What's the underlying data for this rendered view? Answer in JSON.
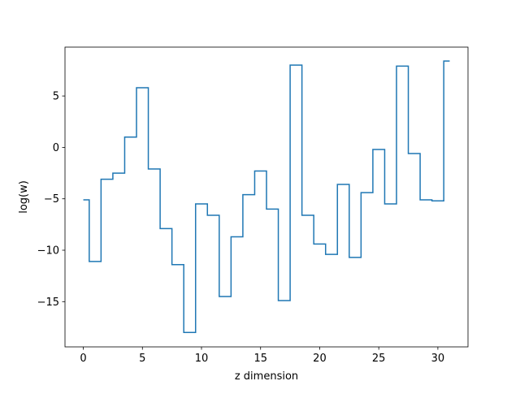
{
  "chart_data": {
    "type": "line",
    "drawstyle": "steps-mid",
    "title": "",
    "xlabel": "z dimension",
    "ylabel": "log(w)",
    "xlim": [
      -1.55,
      32.55
    ],
    "ylim": [
      -19.4,
      9.75
    ],
    "xticks": [
      0,
      5,
      10,
      15,
      20,
      25,
      30
    ],
    "yticks": [
      -15,
      -10,
      -5,
      0,
      5
    ],
    "ytick_labels": [
      "−15",
      "−10",
      "−5",
      "0",
      "5"
    ],
    "grid": false,
    "legend": "none",
    "line_color": "#1f77b4",
    "series": [
      {
        "x": [
          0,
          1,
          2,
          3,
          4,
          5,
          6,
          7,
          8,
          9,
          10,
          11,
          12,
          13,
          14,
          15,
          16,
          17,
          18,
          19,
          20,
          21,
          22,
          23,
          24,
          25,
          26,
          27,
          28,
          29,
          30,
          31
        ],
        "values": [
          -5.1,
          -11.1,
          -3.1,
          -2.5,
          1.0,
          5.8,
          -2.1,
          -7.9,
          -11.4,
          -18.0,
          -5.5,
          -6.6,
          -14.5,
          -8.7,
          -4.6,
          -2.3,
          -6.0,
          -14.9,
          8.0,
          -6.6,
          -9.4,
          -10.4,
          -3.6,
          -10.7,
          -4.4,
          -0.2,
          -5.5,
          7.9,
          -0.6,
          -5.1,
          -5.2,
          8.4
        ]
      }
    ]
  }
}
